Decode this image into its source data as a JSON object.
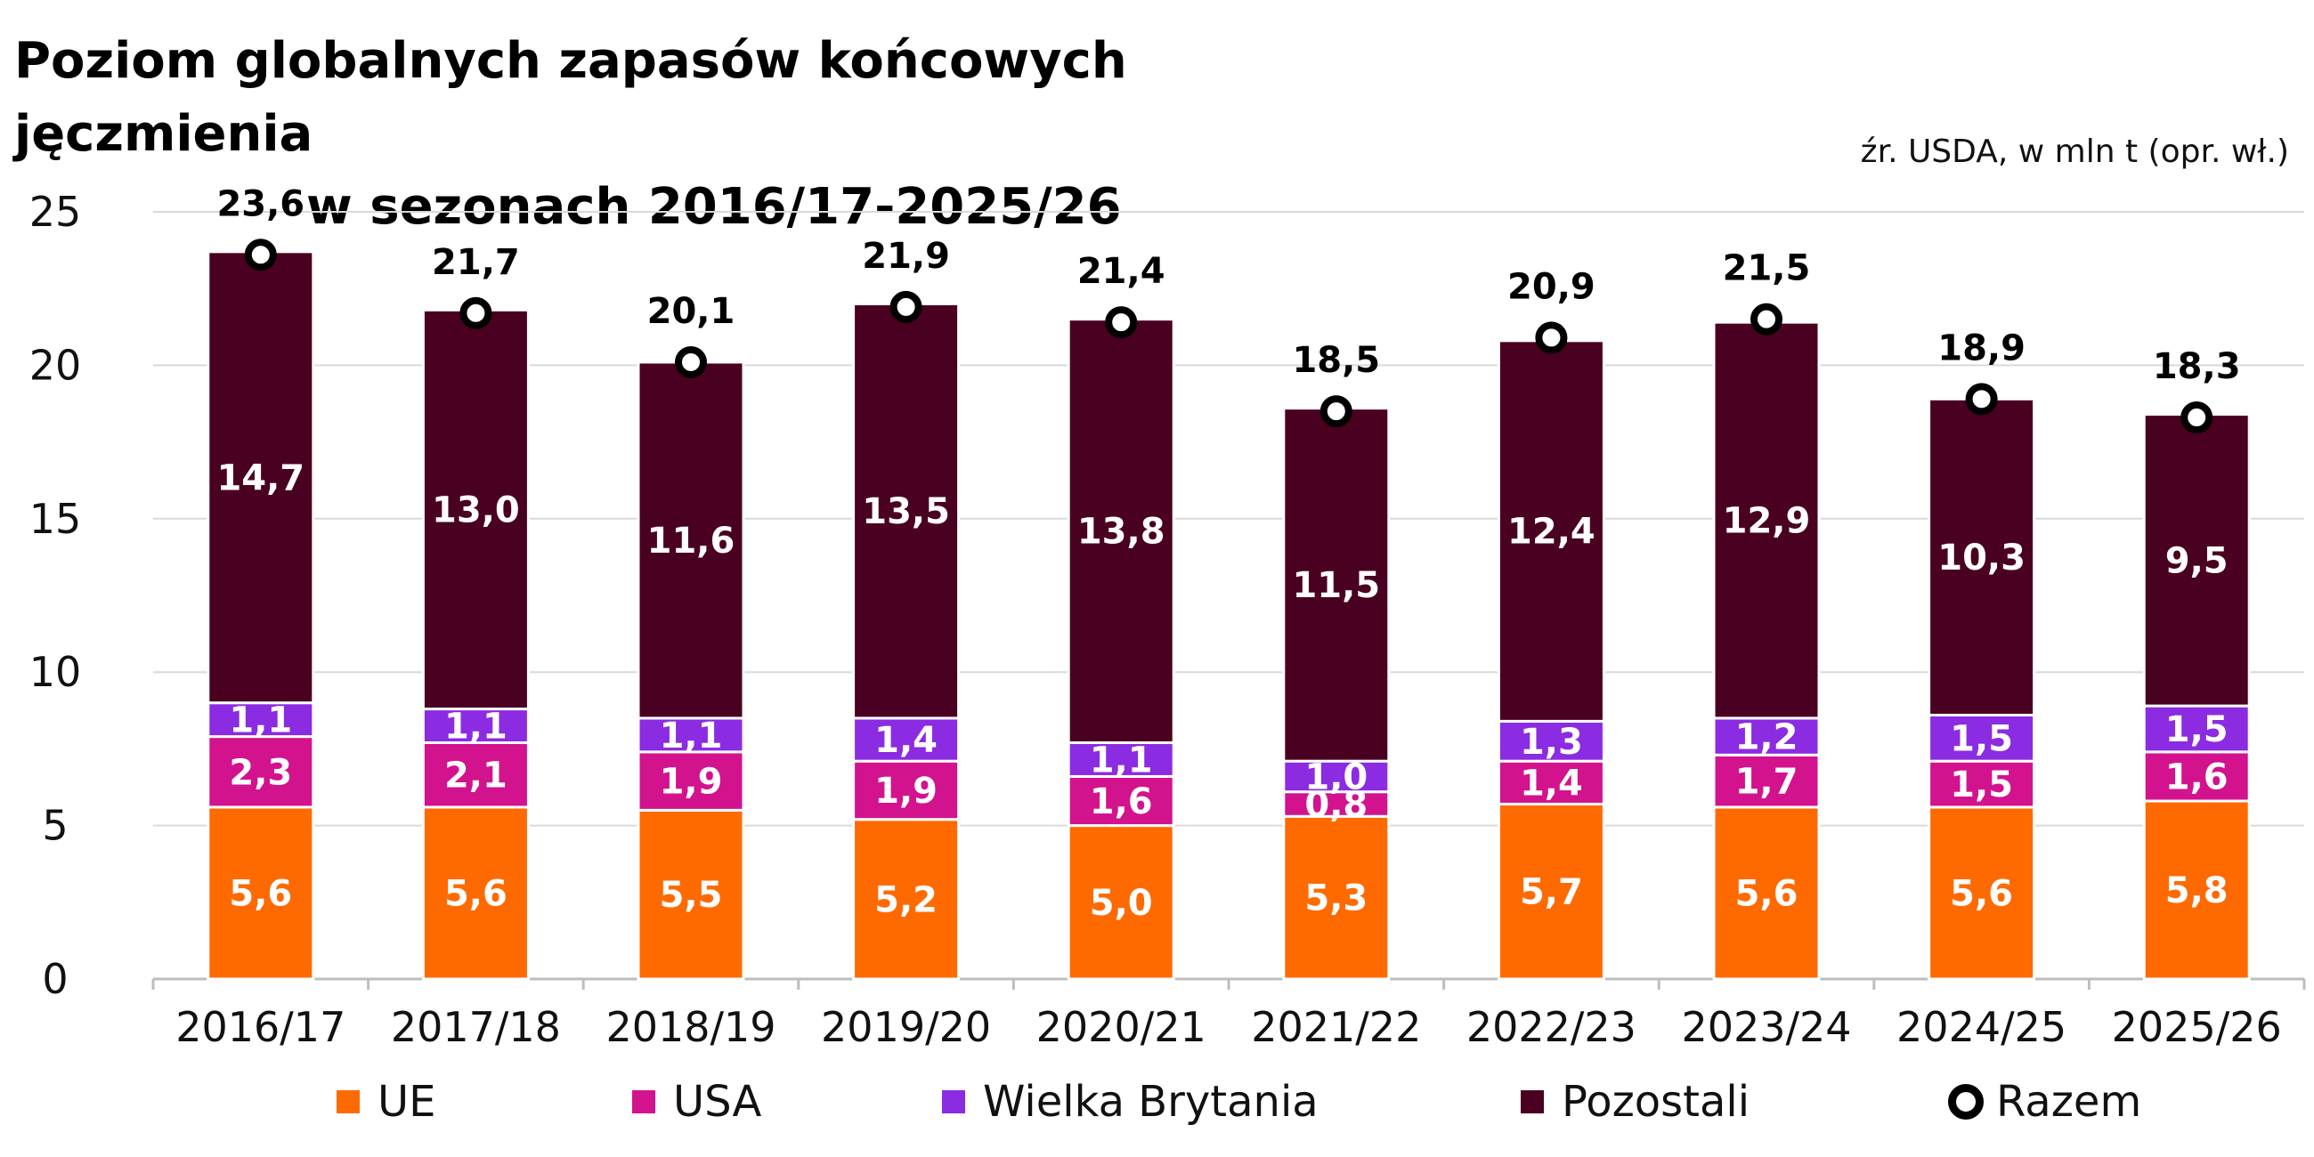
{
  "title_line1": "Poziom globalnych zapasów końcowych jęczmienia",
  "title_line2": "w sezonach 2016/17-2025/26",
  "source": "źr. USDA, w mln t (opr. wł.)",
  "colors": {
    "UE": "#ff6a00",
    "USA": "#d3128e",
    "Wielka Brytania": "#8b2be2",
    "Pozostali": "#4a0020",
    "grid": "#d9d9d9",
    "axis": "#bdbdbd"
  },
  "chart_data": {
    "type": "bar",
    "stacked": true,
    "title": "Poziom globalnych zapasów końcowych jęczmienia w sezonach 2016/17-2025/26",
    "xlabel": "",
    "ylabel": "",
    "ylim": [
      0,
      25
    ],
    "yticks": [
      "0",
      "5",
      "10",
      "15",
      "20",
      "25"
    ],
    "categories": [
      "2016/17",
      "2017/18",
      "2018/19",
      "2019/20",
      "2020/21",
      "2021/22",
      "2022/23",
      "2023/24",
      "2024/25",
      "2025/26"
    ],
    "series": [
      {
        "name": "UE",
        "values": [
          5.6,
          5.6,
          5.5,
          5.2,
          5.0,
          5.3,
          5.7,
          5.6,
          5.6,
          5.8
        ],
        "labels": [
          "5,6",
          "5,6",
          "5,5",
          "5,2",
          "5,0",
          "5,3",
          "5,7",
          "5,6",
          "5,6",
          "5,8"
        ]
      },
      {
        "name": "USA",
        "values": [
          2.3,
          2.1,
          1.9,
          1.9,
          1.6,
          0.8,
          1.4,
          1.7,
          1.5,
          1.6
        ],
        "labels": [
          "2,3",
          "2,1",
          "1,9",
          "1,9",
          "1,6",
          "0,8",
          "1,4",
          "1,7",
          "1,5",
          "1,6"
        ]
      },
      {
        "name": "Wielka Brytania",
        "values": [
          1.1,
          1.1,
          1.1,
          1.4,
          1.1,
          1.0,
          1.3,
          1.2,
          1.5,
          1.5
        ],
        "labels": [
          "1,1",
          "1,1",
          "1,1",
          "1,4",
          "1,1",
          "1,0",
          "1,3",
          "1,2",
          "1,5",
          "1,5"
        ]
      },
      {
        "name": "Pozostali",
        "values": [
          14.7,
          13.0,
          11.6,
          13.5,
          13.8,
          11.5,
          12.4,
          12.9,
          10.3,
          9.5
        ],
        "labels": [
          "14,7",
          "13,0",
          "11,6",
          "13,5",
          "13,8",
          "11,5",
          "12,4",
          "12,9",
          "10,3",
          "9,5"
        ]
      }
    ],
    "totals": {
      "name": "Razem",
      "values": [
        23.6,
        21.7,
        20.1,
        21.9,
        21.4,
        18.5,
        20.9,
        21.5,
        18.9,
        18.3
      ],
      "labels": [
        "23,6",
        "21,7",
        "20,1",
        "21,9",
        "21,4",
        "18,5",
        "20,9",
        "21,5",
        "18,9",
        "18,3"
      ]
    },
    "legend": [
      "UE",
      "USA",
      "Wielka Brytania",
      "Pozostali",
      "Razem"
    ],
    "legend_position": "bottom",
    "grid": true
  }
}
